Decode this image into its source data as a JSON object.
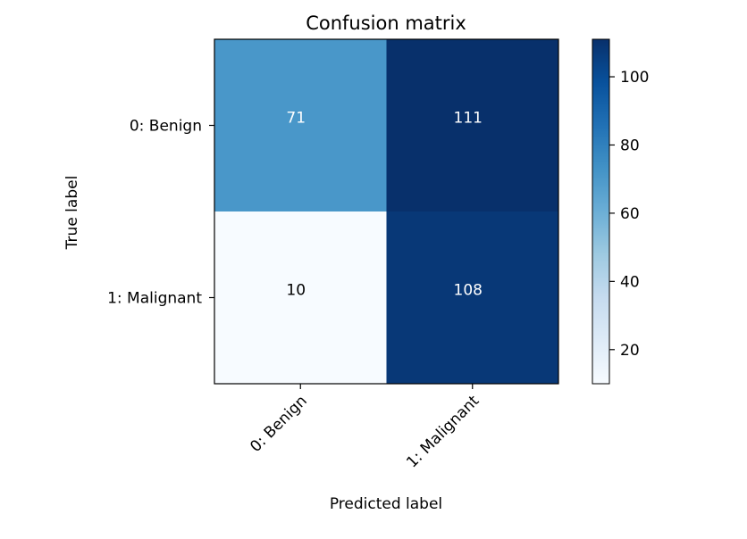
{
  "chart_data": {
    "type": "heatmap",
    "title": "Confusion matrix",
    "xlabel": "Predicted label",
    "ylabel": "True label",
    "x_categories": [
      "0: Benign",
      "1: Malignant"
    ],
    "y_categories": [
      "0: Benign",
      "1: Malignant"
    ],
    "values": [
      [
        71,
        111
      ],
      [
        10,
        108
      ]
    ],
    "colormap": "Blues",
    "colorbar": {
      "range": [
        10,
        111
      ],
      "ticks": [
        20,
        40,
        60,
        80,
        100
      ],
      "tick_labels": [
        "20",
        "40",
        "60",
        "80",
        "100"
      ]
    },
    "colors": {
      "low": "#f7fbff",
      "high": "#08306b",
      "text_light": "#ffffff",
      "text_dark": "#000000"
    }
  }
}
